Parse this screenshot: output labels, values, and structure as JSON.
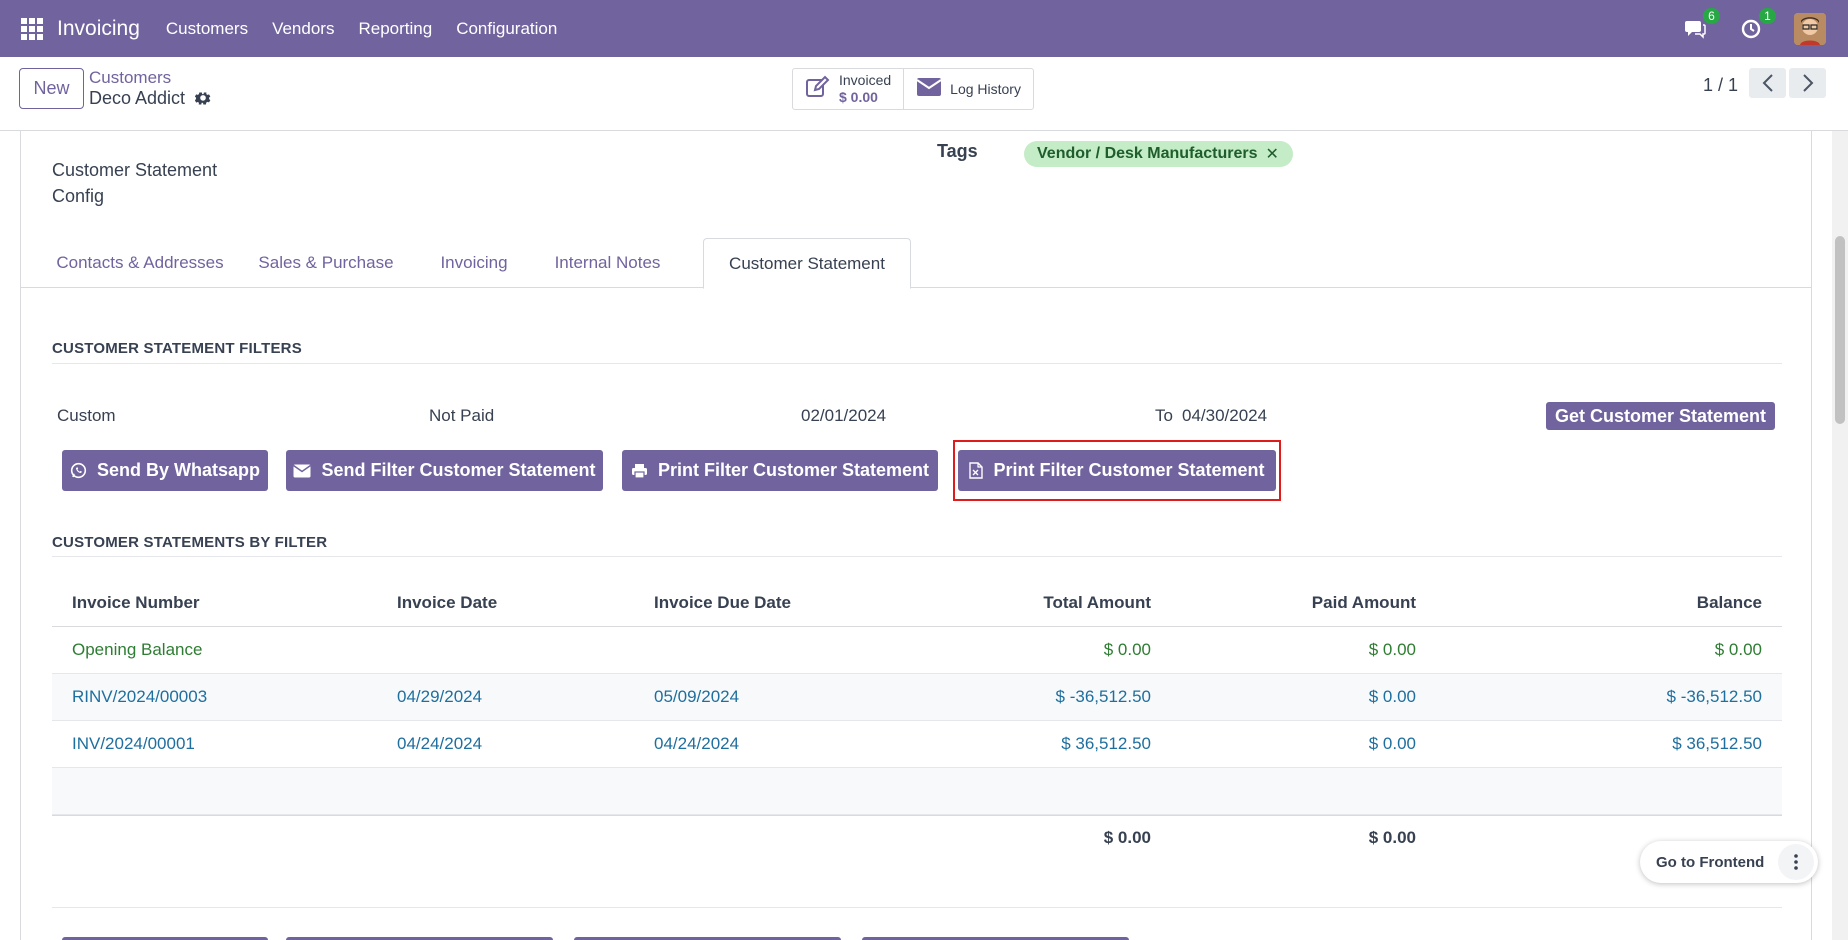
{
  "navbar": {
    "app_name": "Invoicing",
    "menu": [
      "Customers",
      "Vendors",
      "Reporting",
      "Configuration"
    ],
    "messages_count": "6",
    "activities_count": "1",
    "color": "#71639e"
  },
  "control_panel": {
    "new_label": "New",
    "breadcrumb_parent": "Customers",
    "record_name": "Deco Addict",
    "smart_buttons": {
      "invoiced_label": "Invoiced",
      "invoiced_value": "$ 0.00",
      "log_history_label": "Log History"
    },
    "pager": "1 / 1"
  },
  "form": {
    "left_label": "Customer Statement\nConfig",
    "left_label_line1": "Customer Statement",
    "left_label_line2": "Config",
    "tags_label": "Tags",
    "tags": [
      "Vendor / Desk Manufacturers"
    ],
    "tag_color": "#c4ecc7"
  },
  "tabs": [
    {
      "label": "Contacts & Addresses",
      "active": false
    },
    {
      "label": "Sales & Purchase",
      "active": false
    },
    {
      "label": "Invoicing",
      "active": false
    },
    {
      "label": "Internal Notes",
      "active": false
    },
    {
      "label": "Customer Statement",
      "active": true
    }
  ],
  "filters": {
    "section_title": "CUSTOMER STATEMENT FILTERS",
    "period": "Custom",
    "payment_state": "Not Paid",
    "date_from": "02/01/2024",
    "to_label": "To",
    "date_to": "04/30/2024",
    "get_button": "Get Customer Statement",
    "actions": [
      {
        "label": "Send By Whatsapp",
        "icon": "whatsapp-icon"
      },
      {
        "label": "Send Filter Customer Statement",
        "icon": "envelope-icon"
      },
      {
        "label": "Print Filter Customer Statement",
        "icon": "printer-icon"
      },
      {
        "label": "Print Filter Customer Statement",
        "icon": "excel-file-icon"
      }
    ]
  },
  "statements": {
    "section_title": "CUSTOMER STATEMENTS BY FILTER",
    "columns": [
      "Invoice Number",
      "Invoice Date",
      "Invoice Due Date",
      "Total Amount",
      "Paid Amount",
      "Balance"
    ],
    "rows": [
      {
        "number": "Opening Balance",
        "date": "",
        "due": "",
        "total": "$ 0.00",
        "paid": "$ 0.00",
        "balance": "$ 0.00"
      },
      {
        "number": "RINV/2024/00003",
        "date": "04/29/2024",
        "due": "05/09/2024",
        "total": "$ -36,512.50",
        "paid": "$ 0.00",
        "balance": "$ -36,512.50"
      },
      {
        "number": "INV/2024/00001",
        "date": "04/24/2024",
        "due": "04/24/2024",
        "total": "$ 36,512.50",
        "paid": "$ 0.00",
        "balance": "$ 36,512.50"
      }
    ],
    "footer": {
      "total": "$ 0.00",
      "paid": "$ 0.00"
    }
  },
  "floating": {
    "go_frontend": "Go to Frontend"
  }
}
